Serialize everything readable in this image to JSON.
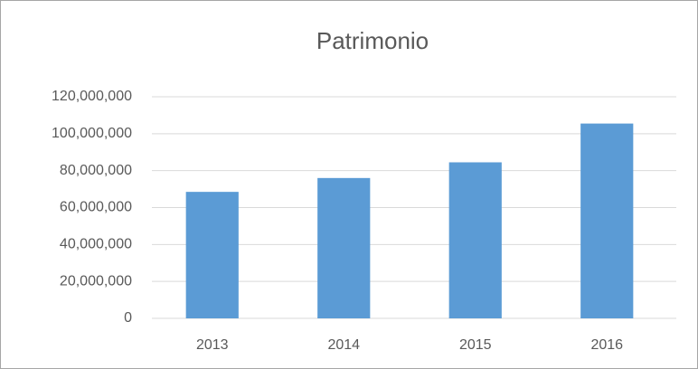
{
  "chart_data": {
    "type": "bar",
    "title": "Patrimonio",
    "categories": [
      "2013",
      "2014",
      "2015",
      "2016"
    ],
    "values": [
      68500000,
      76000000,
      84500000,
      105500000
    ],
    "color": "#5b9bd5",
    "ylim": [
      0,
      120000000
    ],
    "yticks": [
      0,
      {
        "value": 20000000,
        "label": "20,000,000"
      },
      {
        "value": 40000000,
        "label": "40,000,000"
      },
      {
        "value": 60000000,
        "label": "60,000,000"
      },
      {
        "value": 80000000,
        "label": "80,000,000"
      },
      {
        "value": 100000000,
        "label": "100,000,000"
      },
      {
        "value": 120000000,
        "label": "120,000,000"
      }
    ],
    "grid": true
  }
}
